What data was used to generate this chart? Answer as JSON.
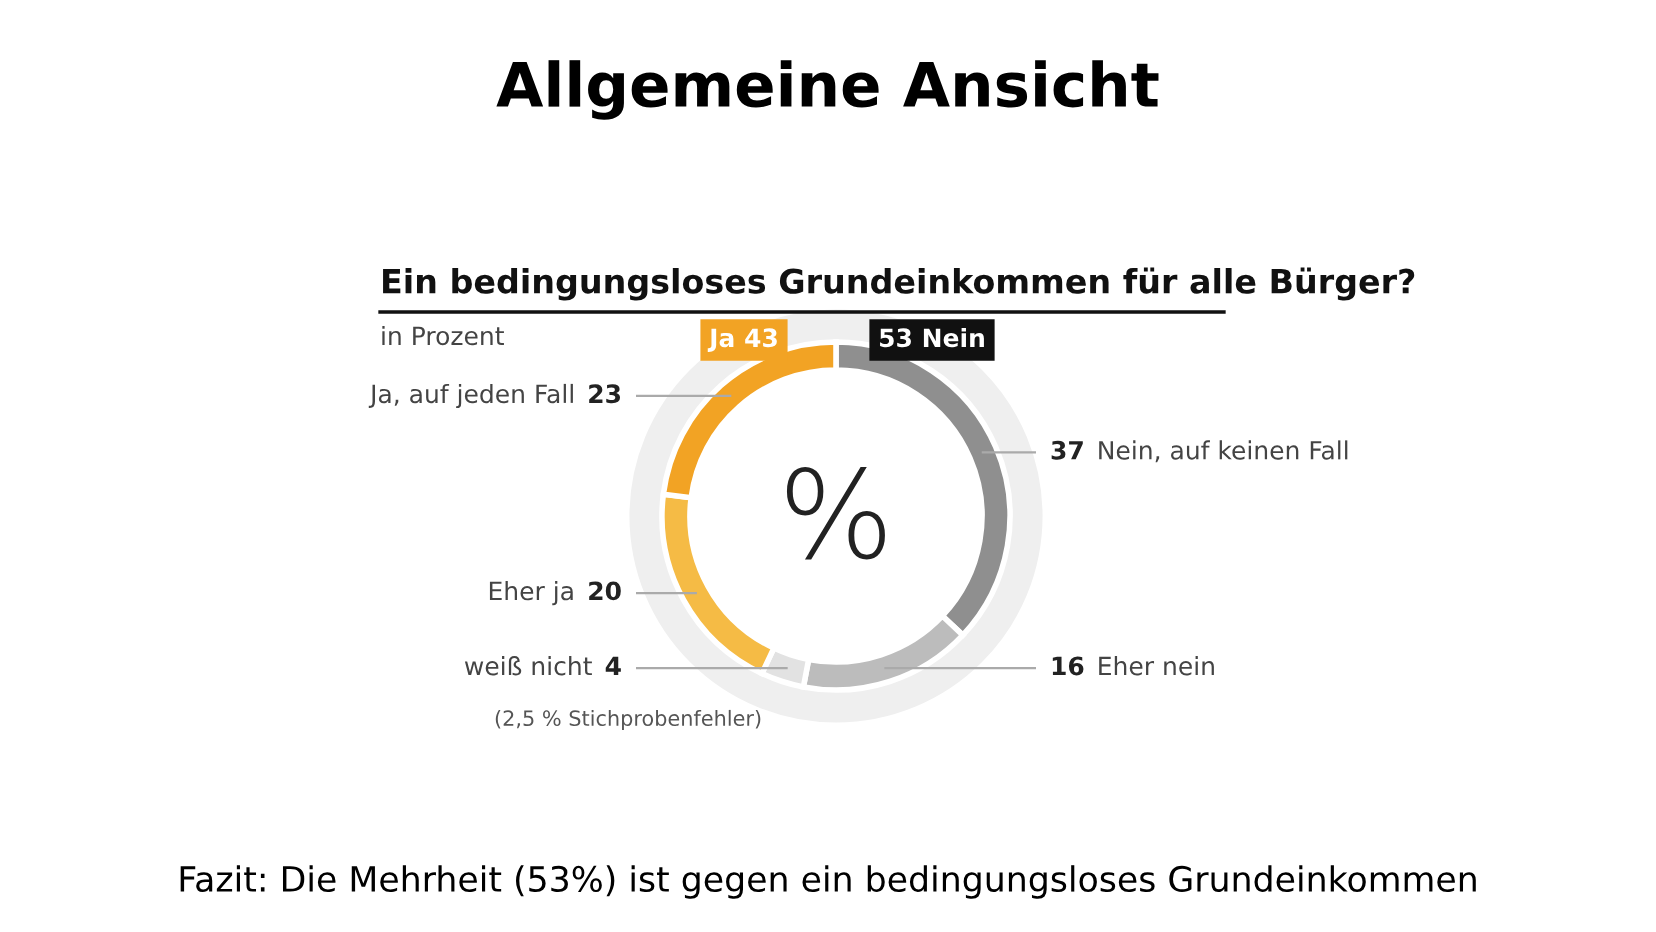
{
  "chart_data": {
    "type": "donut",
    "title": "Ein bedingungsloses Grundeinkommen für alle Bürger?",
    "subtitle": "in Prozent",
    "categories": [
      "Nein, auf keinen Fall",
      "Eher nein",
      "weiß nicht",
      "Eher ja",
      "Ja, auf jeden Fall"
    ],
    "values": [
      37,
      16,
      4,
      20,
      23
    ],
    "colors": [
      "#8f8f8f",
      "#bcbcbc",
      "#e2e2e2",
      "#f5bb45",
      "#f2a324"
    ],
    "data_labels": true,
    "annotations": [
      "Allgemeine Ansicht",
      "Ja 43",
      "53 Nein",
      "%",
      "(2,5 % Stichprobenfehler)",
      "Fazit: Die Mehrheit (53%) ist gegen ein bedingungsloses Grundeinkommen"
    ]
  }
}
